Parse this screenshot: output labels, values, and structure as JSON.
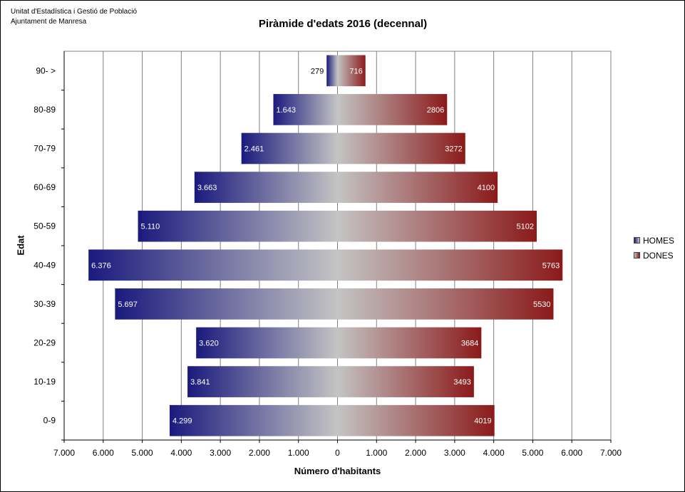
{
  "header": {
    "org_line1": "Unitat d'Estadística i Gestió de Població",
    "org_line2": "Ajuntament de Manresa"
  },
  "chart_data": {
    "type": "bar",
    "orientation": "horizontal",
    "title": "Piràmide d'edats 2016 (decennal)",
    "xlabel": "Número d'habitants",
    "ylabel": "Edat",
    "xlim": [
      -7000,
      7000
    ],
    "x_ticks": [
      -7000,
      -6000,
      -5000,
      -4000,
      -3000,
      -2000,
      -1000,
      0,
      1000,
      2000,
      3000,
      4000,
      5000,
      6000,
      7000
    ],
    "x_tick_labels": [
      "7.000",
      "6.000",
      "5.000",
      "4.000",
      "3.000",
      "2.000",
      "1.000",
      "0",
      "1.000",
      "2.000",
      "3.000",
      "4.000",
      "5.000",
      "6.000",
      "7.000"
    ],
    "grid": true,
    "categories": [
      "90- >",
      "80-89",
      "70-79",
      "60-69",
      "50-59",
      "40-49",
      "30-39",
      "20-29",
      "10-19",
      "0-9"
    ],
    "series": [
      {
        "name": "HOMES",
        "color": "#1a1a7e",
        "values": [
          279,
          1643,
          2461,
          3663,
          5110,
          6376,
          5697,
          3620,
          3841,
          4299
        ],
        "labels": [
          "279",
          "1.643",
          "2.461",
          "3.663",
          "5.110",
          "6.376",
          "5.697",
          "3.620",
          "3.841",
          "4.299"
        ]
      },
      {
        "name": "DONES",
        "color": "#8b1a1a",
        "values": [
          716,
          2806,
          3272,
          4100,
          5102,
          5763,
          5530,
          3684,
          3493,
          4019
        ],
        "labels": [
          "716",
          "2806",
          "3272",
          "4100",
          "5102",
          "5763",
          "5530",
          "3684",
          "3493",
          "4019"
        ]
      }
    ],
    "legend_position": "right"
  }
}
